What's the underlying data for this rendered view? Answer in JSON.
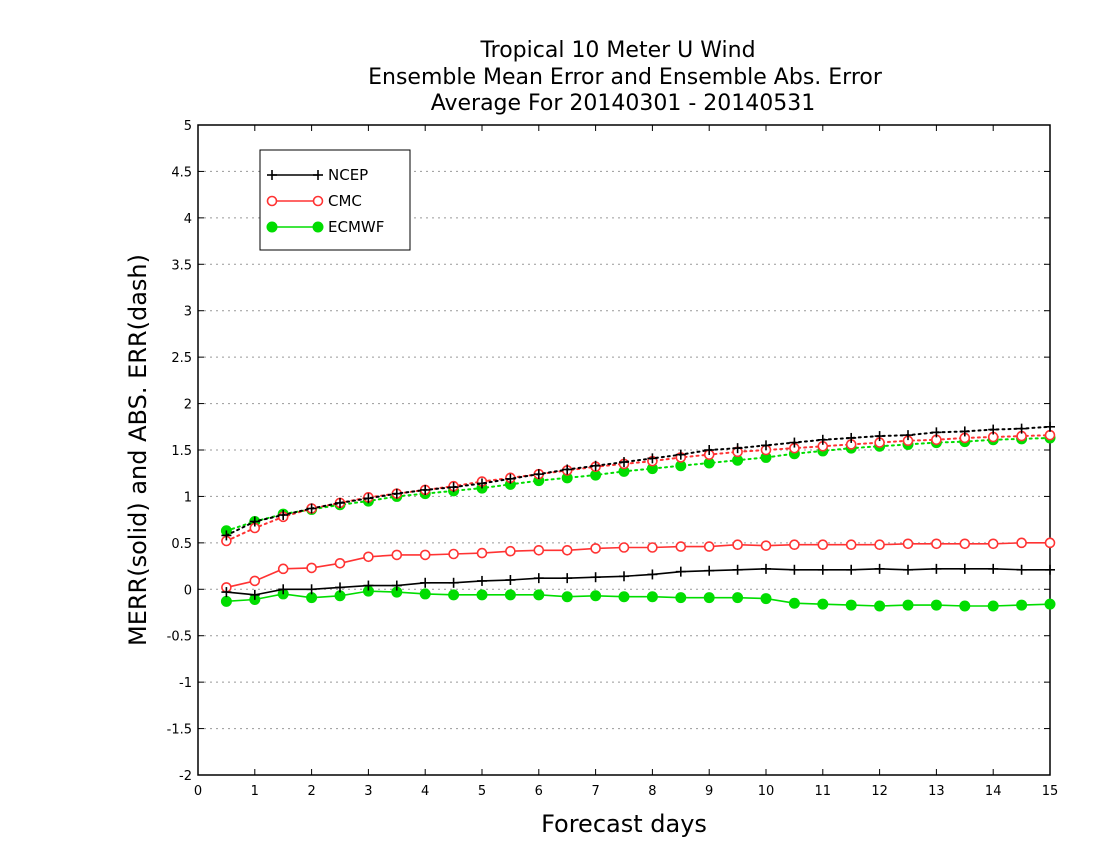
{
  "chart_data": {
    "type": "line",
    "title_lines": [
      "Tropical 10 Meter U Wind",
      "Ensemble Mean Error and Ensemble Abs. Error",
      "Average For 20140301 - 20140531"
    ],
    "xlabel": "Forecast days",
    "ylabel": "MERR(solid) and ABS. ERR(dash)",
    "xlim": [
      0,
      15
    ],
    "ylim": [
      -2,
      5
    ],
    "x_ticks": [
      "0",
      "1",
      "2",
      "3",
      "4",
      "5",
      "6",
      "7",
      "8",
      "9",
      "10",
      "11",
      "12",
      "13",
      "14",
      "15"
    ],
    "y_ticks": [
      "5",
      "4.5",
      "4",
      "3.5",
      "3",
      "2.5",
      "2",
      "1.5",
      "1",
      "0.5",
      "0",
      "-0.5",
      "-1",
      "-1.5",
      "-2"
    ],
    "grid": "horizontal dotted",
    "legend_position": "top-left",
    "x": [
      0.5,
      1,
      1.5,
      2,
      2.5,
      3,
      3.5,
      4,
      4.5,
      5,
      5.5,
      6,
      6.5,
      7,
      7.5,
      8,
      8.5,
      9,
      9.5,
      10,
      10.5,
      11,
      11.5,
      12,
      12.5,
      13,
      13.5,
      14,
      14.5,
      15
    ],
    "series": [
      {
        "name": "NCEP",
        "color": "#000000",
        "marker": "plus",
        "merr": [
          -0.03,
          -0.06,
          0.0,
          0.0,
          0.02,
          0.04,
          0.04,
          0.07,
          0.07,
          0.09,
          0.1,
          0.12,
          0.12,
          0.13,
          0.14,
          0.16,
          0.19,
          0.2,
          0.21,
          0.22,
          0.21,
          0.21,
          0.21,
          0.22,
          0.21,
          0.22,
          0.22,
          0.22,
          0.21,
          0.21
        ],
        "abs_err": [
          0.58,
          0.73,
          0.8,
          0.87,
          0.93,
          0.98,
          1.03,
          1.07,
          1.1,
          1.14,
          1.19,
          1.24,
          1.29,
          1.33,
          1.37,
          1.41,
          1.45,
          1.5,
          1.52,
          1.55,
          1.58,
          1.61,
          1.63,
          1.65,
          1.66,
          1.69,
          1.7,
          1.72,
          1.73,
          1.75
        ]
      },
      {
        "name": "CMC",
        "color": "#ff3333",
        "marker": "open-circle",
        "merr": [
          0.02,
          0.09,
          0.22,
          0.23,
          0.28,
          0.35,
          0.37,
          0.37,
          0.38,
          0.39,
          0.41,
          0.42,
          0.42,
          0.44,
          0.45,
          0.45,
          0.46,
          0.46,
          0.48,
          0.47,
          0.48,
          0.48,
          0.48,
          0.48,
          0.49,
          0.49,
          0.49,
          0.49,
          0.5,
          0.5
        ],
        "abs_err": [
          0.52,
          0.66,
          0.78,
          0.87,
          0.93,
          0.99,
          1.03,
          1.07,
          1.11,
          1.16,
          1.2,
          1.24,
          1.28,
          1.32,
          1.35,
          1.38,
          1.42,
          1.45,
          1.48,
          1.5,
          1.52,
          1.54,
          1.56,
          1.58,
          1.6,
          1.61,
          1.63,
          1.64,
          1.65,
          1.66
        ]
      },
      {
        "name": "ECMWF",
        "color": "#00dd00",
        "marker": "filled-circle",
        "merr": [
          -0.13,
          -0.11,
          -0.05,
          -0.09,
          -0.07,
          -0.02,
          -0.03,
          -0.05,
          -0.06,
          -0.06,
          -0.06,
          -0.06,
          -0.08,
          -0.07,
          -0.08,
          -0.08,
          -0.09,
          -0.09,
          -0.09,
          -0.1,
          -0.15,
          -0.16,
          -0.17,
          -0.18,
          -0.17,
          -0.17,
          -0.18,
          -0.18,
          -0.17,
          -0.16
        ],
        "abs_err": [
          0.63,
          0.73,
          0.81,
          0.86,
          0.91,
          0.95,
          1.0,
          1.03,
          1.06,
          1.09,
          1.13,
          1.17,
          1.2,
          1.23,
          1.27,
          1.3,
          1.33,
          1.36,
          1.39,
          1.42,
          1.46,
          1.49,
          1.52,
          1.54,
          1.56,
          1.58,
          1.59,
          1.61,
          1.62,
          1.63
        ]
      }
    ]
  }
}
